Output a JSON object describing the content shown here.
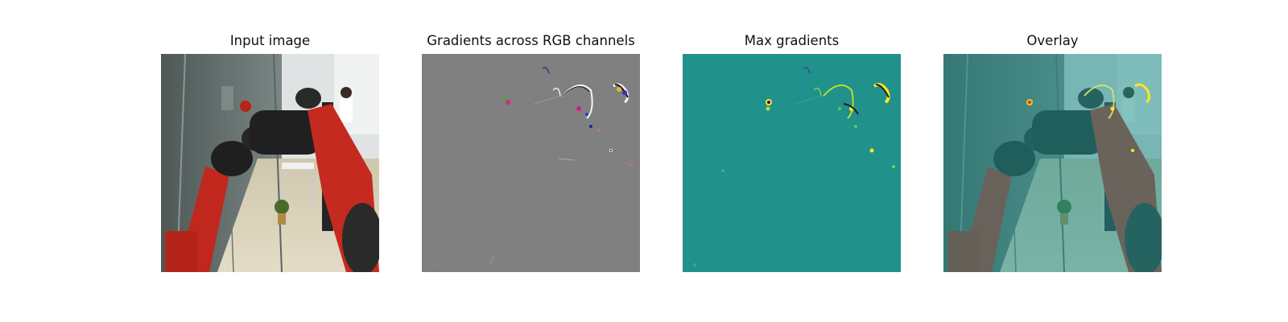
{
  "panels": [
    {
      "title": "Input image"
    },
    {
      "title": "Gradients across RGB channels"
    },
    {
      "title": "Max gradients"
    },
    {
      "title": "Overlay"
    }
  ],
  "colors": {
    "background": "#ffffff",
    "gradients_gray": "#808080",
    "max_gradients_teal": "#21918c",
    "robot_red": "#c0281e",
    "robot_black": "#222222",
    "floor_beige": "#d9d0b5",
    "wall_dark": "#5e6a68",
    "highlight_yellow": "#f5e12b"
  }
}
